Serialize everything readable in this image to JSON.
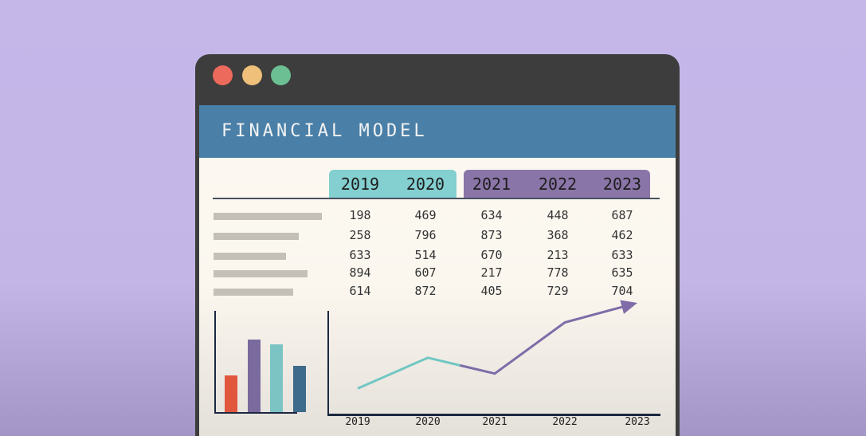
{
  "window": {
    "controls": [
      {
        "name": "close",
        "color": "#ec6a5c"
      },
      {
        "name": "minimize",
        "color": "#eec07a"
      },
      {
        "name": "maximize",
        "color": "#6bbf93"
      }
    ]
  },
  "header": {
    "title": "FINANCIAL MODEL"
  },
  "table": {
    "columns": [
      "2019",
      "2020",
      "2021",
      "2022",
      "2023"
    ],
    "column_group_colors": {
      "actual": "#84cfd0",
      "forecast": "#8a75a8"
    },
    "rows": [
      [
        "198",
        "469",
        "634",
        "448",
        "687"
      ],
      [
        "258",
        "796",
        "873",
        "368",
        "462"
      ],
      [
        "633",
        "514",
        "670",
        "213",
        "633"
      ],
      [
        "894",
        "607",
        "217",
        "778",
        "635"
      ],
      [
        "614",
        "872",
        "405",
        "729",
        "704"
      ]
    ]
  },
  "chart_data": [
    {
      "type": "bar",
      "ylim": [
        0,
        100
      ],
      "grid": false,
      "values": [
        36,
        72,
        67,
        46
      ],
      "colors": [
        "#e0573e",
        "#7a6a9e",
        "#7cc4c4",
        "#3e6b8c"
      ]
    },
    {
      "type": "line",
      "categories": [
        "2019",
        "2020",
        "2021",
        "2022",
        "2023"
      ],
      "values": [
        28,
        61,
        44,
        99,
        120
      ],
      "ylim": [
        0,
        120
      ],
      "grid": false,
      "colors": {
        "actual": "#72c7c3",
        "forecast": "#7f6ca8"
      },
      "end_marker": "arrow"
    }
  ]
}
